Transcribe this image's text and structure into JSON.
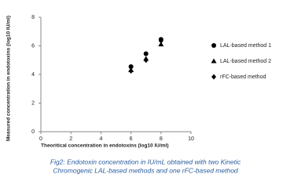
{
  "chart_data": {
    "type": "scatter",
    "ylabel": "Measured concentration in endotoxins (log10 IU/ml)",
    "xlabel": "Theoritical concentration in endotoxins (log10 IU/ml)",
    "x": [
      6,
      7,
      8
    ],
    "series": [
      {
        "name": "LAL-based method 1",
        "color": "#000000",
        "marker": "circle",
        "values": [
          4.55,
          5.45,
          6.45
        ]
      },
      {
        "name": "LAL-based method 2",
        "color": "#000000",
        "marker": "triangle",
        "values": [
          4.3,
          5.1,
          6.1
        ]
      },
      {
        "name": "rFC-based method",
        "color": "#000000",
        "marker": "diamond",
        "values": [
          4.25,
          5.0,
          6.35
        ]
      }
    ],
    "xlim": [
      0,
      10
    ],
    "xticks": [
      0,
      2,
      4,
      6,
      8,
      10
    ],
    "ylim": [
      0,
      8
    ],
    "yticks": [
      0,
      2,
      4,
      6,
      8
    ],
    "grid": false,
    "legend": "right"
  },
  "caption": [
    "Fig2: Endotoxin concentration in IU/mL obtained with two Kinetic",
    "Chromogenic LAL-based methods and one rFC-based method"
  ]
}
